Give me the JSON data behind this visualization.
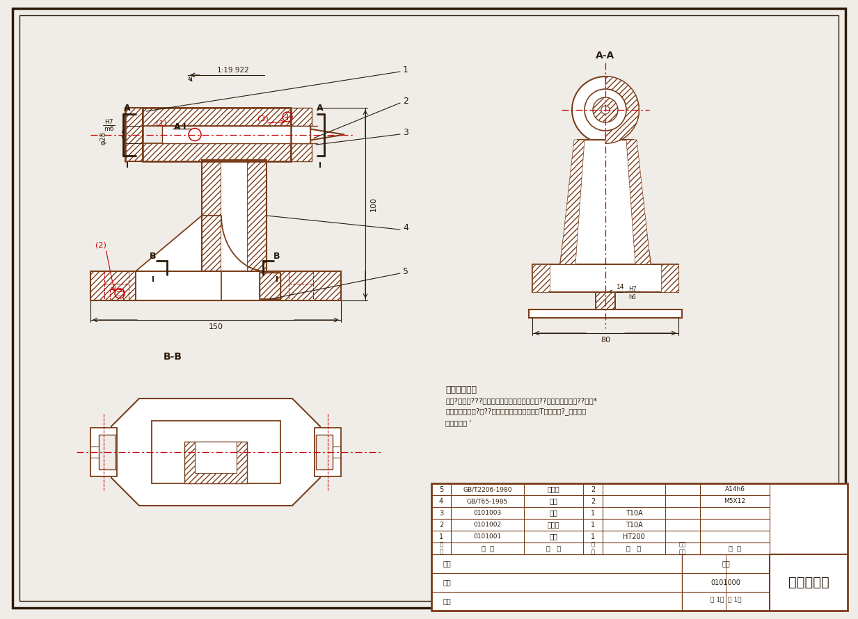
{
  "title": "固定顶尖座",
  "drawing_number": "0101000",
  "bg_color": "#f0ede8",
  "line_color": "#7a3d1a",
  "red_color": "#cc0000",
  "dark_color": "#2a1a0a",
  "bom_rows": [
    {
      "seq": "5",
      "code": "GB/T2206-1980",
      "name": "定位键",
      "qty": "2",
      "material": "",
      "note": "A14h6"
    },
    {
      "seq": "4",
      "code": "GB/T65-1985",
      "name": "螺钉",
      "qty": "2",
      "material": "",
      "note": "M5X12"
    },
    {
      "seq": "3",
      "code": "0101003",
      "name": "顶尖",
      "qty": "1",
      "material": "T10A",
      "note": ""
    },
    {
      "seq": "2",
      "code": "0101002",
      "name": "顶尖套",
      "qty": "1",
      "material": "T10A",
      "note": ""
    },
    {
      "seq": "1",
      "code": "0101001",
      "name": "本体",
      "qty": "1",
      "material": "HT200",
      "note": ""
    }
  ]
}
